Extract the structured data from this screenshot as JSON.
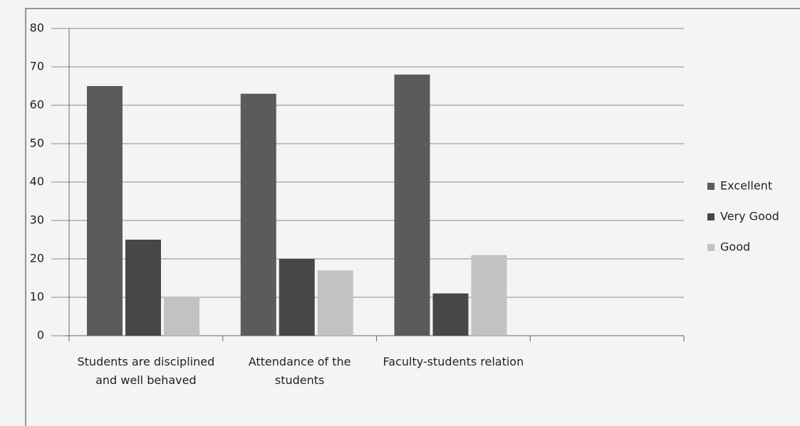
{
  "chart_data": {
    "type": "bar",
    "categories": [
      "Students are disciplined and well behaved",
      "Attendance of the students",
      "Faculty-students relation",
      null
    ],
    "series": [
      {
        "name": "Excellent",
        "color": "#5b5b5b",
        "values": [
          65,
          63,
          68,
          null
        ]
      },
      {
        "name": "Very Good",
        "color": "#474747",
        "values": [
          25,
          20,
          11,
          null
        ]
      },
      {
        "name": "Good",
        "color": "#c2c2c2",
        "values": [
          10,
          17,
          21,
          null
        ]
      }
    ],
    "ylim": [
      0,
      80
    ],
    "yticks": [
      0,
      10,
      20,
      30,
      40,
      50,
      60,
      70,
      80
    ],
    "grid": true,
    "legend": "right"
  }
}
